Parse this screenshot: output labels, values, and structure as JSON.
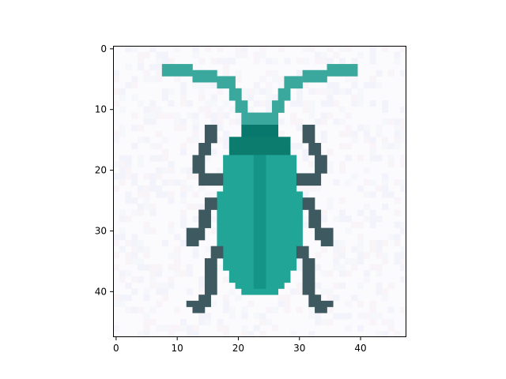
{
  "chart_data": {
    "type": "heatmap",
    "render": "pixel-image",
    "title": "",
    "xlabel": "",
    "ylabel": "",
    "grid": false,
    "legend": "none",
    "xlim": [
      -0.5,
      47.5
    ],
    "ylim": [
      47.5,
      -0.5
    ],
    "y_inverted": true,
    "x_ticks": [
      0,
      10,
      20,
      30,
      40
    ],
    "y_ticks": [
      0,
      10,
      20,
      30,
      40
    ],
    "x_tick_labels": [
      "0",
      "10",
      "20",
      "30",
      "40"
    ],
    "y_tick_labels": [
      "0",
      "10",
      "20",
      "30",
      "40"
    ],
    "grid_size": [
      48,
      48
    ],
    "palette": {
      "background": "#fbfafd",
      "antenna": "#3aa89c",
      "head": "#08786c",
      "thorax": "#0c7c6e",
      "body": "#21a596",
      "stripe": "#139486",
      "legs": "#3e5a60"
    },
    "shapes": [
      {
        "part": "antenna",
        "x0": 8,
        "x1": 13,
        "y0": 3,
        "y1": 5
      },
      {
        "part": "antenna",
        "x0": 13,
        "x1": 17,
        "y0": 4,
        "y1": 6
      },
      {
        "part": "antenna",
        "x0": 17,
        "x1": 20,
        "y0": 5,
        "y1": 7
      },
      {
        "part": "antenna",
        "x0": 19,
        "x1": 21,
        "y0": 7,
        "y1": 9
      },
      {
        "part": "antenna",
        "x0": 20,
        "x1": 22,
        "y0": 9,
        "y1": 11
      },
      {
        "part": "antenna",
        "x0": 21,
        "x1": 27,
        "y0": 11,
        "y1": 13
      },
      {
        "part": "antenna",
        "x0": 26,
        "x1": 28,
        "y0": 9,
        "y1": 11
      },
      {
        "part": "antenna",
        "x0": 27,
        "x1": 29,
        "y0": 7,
        "y1": 9
      },
      {
        "part": "antenna",
        "x0": 28,
        "x1": 31,
        "y0": 5,
        "y1": 7
      },
      {
        "part": "antenna",
        "x0": 31,
        "x1": 35,
        "y0": 4,
        "y1": 6
      },
      {
        "part": "antenna",
        "x0": 35,
        "x1": 40,
        "y0": 3,
        "y1": 5
      },
      {
        "part": "head",
        "x0": 21,
        "x1": 27,
        "y0": 13,
        "y1": 15
      },
      {
        "part": "thorax",
        "x0": 19,
        "x1": 29,
        "y0": 15,
        "y1": 18
      },
      {
        "part": "body",
        "x0": 18,
        "x1": 30,
        "y0": 18,
        "y1": 24
      },
      {
        "part": "body",
        "x0": 17,
        "x1": 31,
        "y0": 24,
        "y1": 33
      },
      {
        "part": "body",
        "x0": 18,
        "x1": 30,
        "y0": 33,
        "y1": 37
      },
      {
        "part": "body",
        "x0": 19,
        "x1": 29,
        "y0": 37,
        "y1": 39
      },
      {
        "part": "body",
        "x0": 20,
        "x1": 28,
        "y0": 39,
        "y1": 40
      },
      {
        "part": "body",
        "x0": 21,
        "x1": 27,
        "y0": 40,
        "y1": 41
      },
      {
        "part": "stripe",
        "x0": 23,
        "x1": 25,
        "y0": 18,
        "y1": 40
      },
      {
        "part": "legs",
        "x0": 15,
        "x1": 17,
        "y0": 13,
        "y1": 16
      },
      {
        "part": "legs",
        "x0": 14,
        "x1": 16,
        "y0": 16,
        "y1": 18
      },
      {
        "part": "legs",
        "x0": 13,
        "x1": 15,
        "y0": 18,
        "y1": 21
      },
      {
        "part": "legs",
        "x0": 14,
        "x1": 18,
        "y0": 21,
        "y1": 23
      },
      {
        "part": "legs",
        "x0": 15,
        "x1": 17,
        "y0": 25,
        "y1": 27
      },
      {
        "part": "legs",
        "x0": 14,
        "x1": 16,
        "y0": 27,
        "y1": 30
      },
      {
        "part": "legs",
        "x0": 12,
        "x1": 15,
        "y0": 30,
        "y1": 32
      },
      {
        "part": "legs",
        "x0": 12,
        "x1": 14,
        "y0": 32,
        "y1": 33
      },
      {
        "part": "legs",
        "x0": 16,
        "x1": 18,
        "y0": 33,
        "y1": 35
      },
      {
        "part": "legs",
        "x0": 15,
        "x1": 17,
        "y0": 35,
        "y1": 41
      },
      {
        "part": "legs",
        "x0": 14,
        "x1": 16,
        "y0": 41,
        "y1": 43
      },
      {
        "part": "legs",
        "x0": 12,
        "x1": 15,
        "y0": 42,
        "y1": 43
      },
      {
        "part": "legs",
        "x0": 13,
        "x1": 15,
        "y0": 43,
        "y1": 44
      },
      {
        "part": "legs",
        "x0": 31,
        "x1": 33,
        "y0": 13,
        "y1": 16
      },
      {
        "part": "legs",
        "x0": 32,
        "x1": 34,
        "y0": 16,
        "y1": 18
      },
      {
        "part": "legs",
        "x0": 33,
        "x1": 35,
        "y0": 18,
        "y1": 21
      },
      {
        "part": "legs",
        "x0": 30,
        "x1": 34,
        "y0": 21,
        "y1": 23
      },
      {
        "part": "legs",
        "x0": 31,
        "x1": 33,
        "y0": 25,
        "y1": 27
      },
      {
        "part": "legs",
        "x0": 32,
        "x1": 34,
        "y0": 27,
        "y1": 30
      },
      {
        "part": "legs",
        "x0": 33,
        "x1": 36,
        "y0": 30,
        "y1": 32
      },
      {
        "part": "legs",
        "x0": 34,
        "x1": 36,
        "y0": 32,
        "y1": 33
      },
      {
        "part": "legs",
        "x0": 30,
        "x1": 32,
        "y0": 33,
        "y1": 35
      },
      {
        "part": "legs",
        "x0": 31,
        "x1": 33,
        "y0": 35,
        "y1": 41
      },
      {
        "part": "legs",
        "x0": 32,
        "x1": 34,
        "y0": 41,
        "y1": 43
      },
      {
        "part": "legs",
        "x0": 33,
        "x1": 36,
        "y0": 42,
        "y1": 43
      },
      {
        "part": "legs",
        "x0": 33,
        "x1": 35,
        "y0": 43,
        "y1": 44
      }
    ]
  }
}
